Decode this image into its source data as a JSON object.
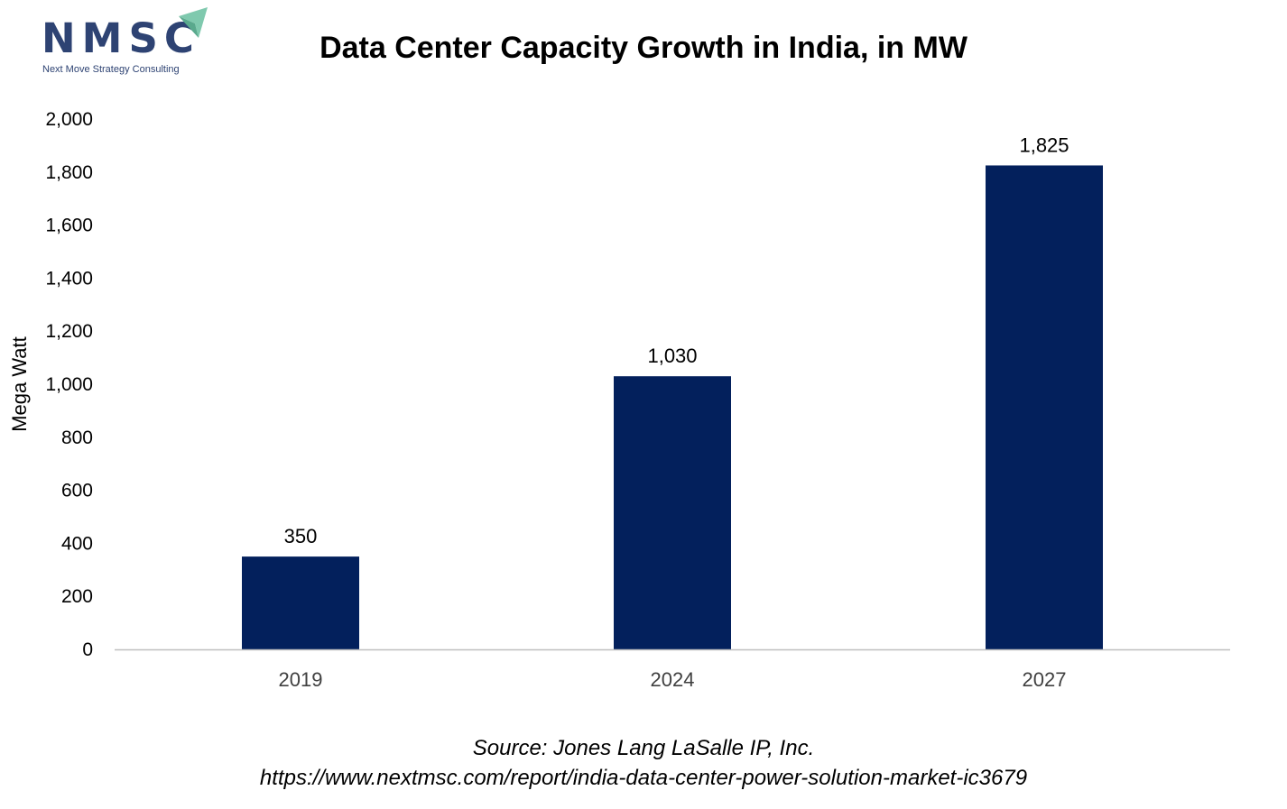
{
  "logo": {
    "text": "NMSC",
    "tagline": "Next Move Strategy Consulting"
  },
  "chart_data": {
    "type": "bar",
    "title": "Data Center Capacity Growth in India, in MW",
    "xlabel": "",
    "ylabel": "Mega Watt",
    "categories": [
      "2019",
      "2024",
      "2027"
    ],
    "values": [
      350,
      1030,
      1825
    ],
    "data_labels": [
      "350",
      "1,030",
      "1,825"
    ],
    "ylim": [
      0,
      2000
    ],
    "yticks": [
      0,
      200,
      400,
      600,
      800,
      1000,
      1200,
      1400,
      1600,
      1800,
      2000
    ],
    "ytick_labels": [
      "0",
      "200",
      "400",
      "600",
      "800",
      "1,000",
      "1,200",
      "1,400",
      "1,600",
      "1,800",
      "2,000"
    ],
    "grid": false,
    "legend": "none",
    "bar_color": "#03205c"
  },
  "footer": {
    "source": "Source: Jones Lang LaSalle IP, Inc.",
    "url": "https://www.nextmsc.com/report/india-data-center-power-solution-market-ic3679"
  },
  "colors": {
    "brand": "#2e4373",
    "logo_arrow": "#7fc9ae",
    "axis_line": "#bfbfbf"
  }
}
